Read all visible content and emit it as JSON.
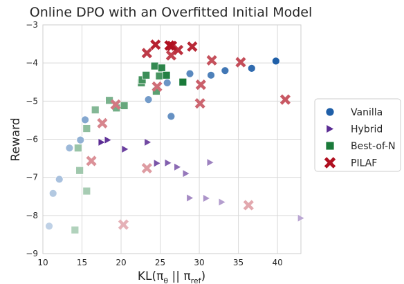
{
  "chart_data": {
    "type": "scatter",
    "title": "Online DPO with an Overfitted Initial Model",
    "xlabel": "KL(π",
    "xlabel_sub1": "θ",
    "xlabel_mid": " || π",
    "xlabel_sub2": "ref",
    "xlabel_end": ")",
    "ylabel": "Reward",
    "xlim": [
      10,
      43
    ],
    "ylim": [
      -9,
      -3
    ],
    "xticks": [
      10,
      15,
      20,
      25,
      30,
      35,
      40
    ],
    "yticks": [
      -9,
      -8,
      -7,
      -6,
      -5,
      -4,
      -3
    ],
    "grid": true,
    "legend_position": "right",
    "series": [
      {
        "name": "Vanilla",
        "marker": "circle",
        "color": "#1f5fa8",
        "points": [
          {
            "x": 10.8,
            "y": -8.28,
            "shade": 0.05
          },
          {
            "x": 11.3,
            "y": -7.42,
            "shade": 0.12
          },
          {
            "x": 12.1,
            "y": -7.05,
            "shade": 0.18
          },
          {
            "x": 13.4,
            "y": -6.23,
            "shade": 0.25
          },
          {
            "x": 14.8,
            "y": -6.02,
            "shade": 0.32
          },
          {
            "x": 15.4,
            "y": -5.49,
            "shade": 0.4
          },
          {
            "x": 23.5,
            "y": -4.96,
            "shade": 0.5
          },
          {
            "x": 25.9,
            "y": -4.52,
            "shade": 0.55
          },
          {
            "x": 26.4,
            "y": -5.4,
            "shade": 0.58
          },
          {
            "x": 28.8,
            "y": -4.28,
            "shade": 0.65
          },
          {
            "x": 31.5,
            "y": -4.32,
            "shade": 0.72
          },
          {
            "x": 33.3,
            "y": -4.2,
            "shade": 0.8
          },
          {
            "x": 36.7,
            "y": -4.14,
            "shade": 0.9
          },
          {
            "x": 39.8,
            "y": -3.95,
            "shade": 1.0
          }
        ]
      },
      {
        "name": "Hybrid",
        "marker": "triangle-right",
        "color": "#5b2c94",
        "points": [
          {
            "x": 17.5,
            "y": -6.08,
            "shade": 1.0
          },
          {
            "x": 18.3,
            "y": -6.02,
            "shade": 0.95
          },
          {
            "x": 20.5,
            "y": -6.26,
            "shade": 0.88
          },
          {
            "x": 23.4,
            "y": -6.08,
            "shade": 0.82
          },
          {
            "x": 24.6,
            "y": -6.63,
            "shade": 0.75
          },
          {
            "x": 26.0,
            "y": -6.62,
            "shade": 0.68
          },
          {
            "x": 27.2,
            "y": -6.73,
            "shade": 0.6
          },
          {
            "x": 28.3,
            "y": -6.9,
            "shade": 0.52
          },
          {
            "x": 31.4,
            "y": -6.61,
            "shade": 0.46
          },
          {
            "x": 28.8,
            "y": -7.54,
            "shade": 0.4
          },
          {
            "x": 30.9,
            "y": -7.55,
            "shade": 0.34
          },
          {
            "x": 32.9,
            "y": -7.65,
            "shade": 0.28
          },
          {
            "x": 43.0,
            "y": -8.07,
            "shade": 0.22
          }
        ]
      },
      {
        "name": "Best-of-N",
        "marker": "square",
        "color": "#1a7a3a",
        "points": [
          {
            "x": 14.1,
            "y": -8.38,
            "shade": 0.12
          },
          {
            "x": 15.6,
            "y": -7.36,
            "shade": 0.18
          },
          {
            "x": 14.7,
            "y": -6.82,
            "shade": 0.22
          },
          {
            "x": 14.5,
            "y": -6.23,
            "shade": 0.26
          },
          {
            "x": 15.6,
            "y": -5.72,
            "shade": 0.32
          },
          {
            "x": 16.7,
            "y": -5.23,
            "shade": 0.38
          },
          {
            "x": 18.5,
            "y": -4.98,
            "shade": 0.44
          },
          {
            "x": 19.4,
            "y": -5.18,
            "shade": 0.48
          },
          {
            "x": 20.4,
            "y": -5.12,
            "shade": 0.55
          },
          {
            "x": 24.5,
            "y": -4.74,
            "shade": 0.62
          },
          {
            "x": 22.6,
            "y": -4.52,
            "shade": 0.7
          },
          {
            "x": 24.9,
            "y": -4.34,
            "shade": 0.74
          },
          {
            "x": 22.7,
            "y": -4.44,
            "shade": 0.76
          },
          {
            "x": 23.2,
            "y": -4.32,
            "shade": 0.8
          },
          {
            "x": 24.3,
            "y": -4.08,
            "shade": 0.84
          },
          {
            "x": 25.2,
            "y": -4.13,
            "shade": 0.9
          },
          {
            "x": 25.8,
            "y": -4.32,
            "shade": 0.94
          },
          {
            "x": 27.9,
            "y": -4.5,
            "shade": 1.0
          }
        ]
      },
      {
        "name": "PILAF",
        "marker": "x",
        "color": "#b01020",
        "points": [
          {
            "x": 20.3,
            "y": -8.24,
            "shade": 0.1
          },
          {
            "x": 36.3,
            "y": -7.73,
            "shade": 0.15
          },
          {
            "x": 23.3,
            "y": -6.76,
            "shade": 0.22
          },
          {
            "x": 16.2,
            "y": -6.57,
            "shade": 0.28
          },
          {
            "x": 17.6,
            "y": -5.58,
            "shade": 0.35
          },
          {
            "x": 19.3,
            "y": -5.09,
            "shade": 0.42
          },
          {
            "x": 24.6,
            "y": -4.62,
            "shade": 0.48
          },
          {
            "x": 30.1,
            "y": -5.06,
            "shade": 0.52
          },
          {
            "x": 30.2,
            "y": -4.57,
            "shade": 0.56
          },
          {
            "x": 41.0,
            "y": -4.96,
            "shade": 0.6
          },
          {
            "x": 31.6,
            "y": -3.93,
            "shade": 0.64
          },
          {
            "x": 35.3,
            "y": -3.98,
            "shade": 0.66
          },
          {
            "x": 26.4,
            "y": -3.8,
            "shade": 0.72
          },
          {
            "x": 23.3,
            "y": -3.74,
            "shade": 0.76
          },
          {
            "x": 27.3,
            "y": -3.66,
            "shade": 0.82
          },
          {
            "x": 29.1,
            "y": -3.57,
            "shade": 0.86
          },
          {
            "x": 24.4,
            "y": -3.52,
            "shade": 0.9
          },
          {
            "x": 26.5,
            "y": -3.55,
            "shade": 0.96
          },
          {
            "x": 26.2,
            "y": -3.54,
            "shade": 1.0
          }
        ]
      }
    ]
  }
}
